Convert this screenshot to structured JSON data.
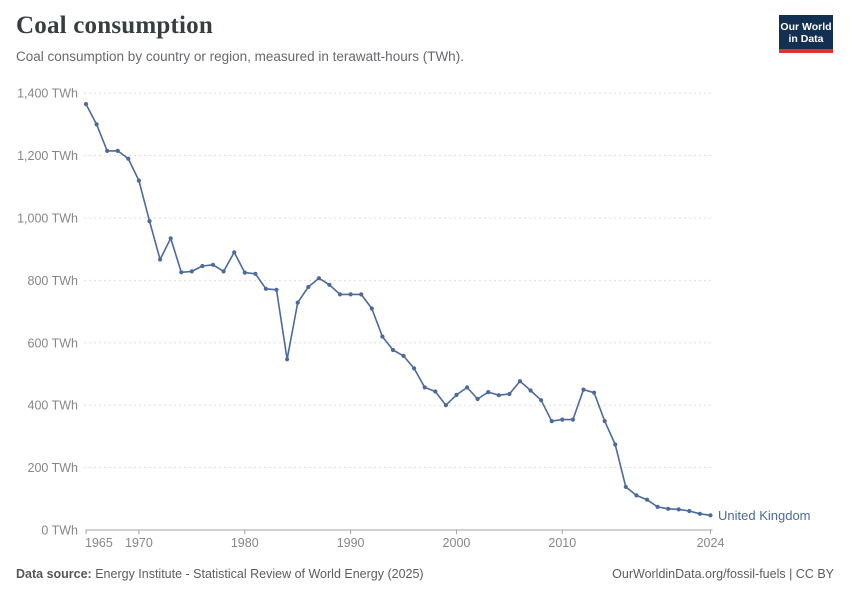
{
  "header": {
    "title": "Coal consumption",
    "subtitle": "Coal consumption by country or region, measured in terawatt-hours (TWh).",
    "logo": {
      "line1": "Our World",
      "line2": "in Data"
    }
  },
  "chart_data": {
    "type": "line",
    "title": "Coal consumption",
    "unit": "TWh",
    "grid": "horizontal-dashed",
    "legend": "end-of-line-label",
    "xlim": [
      1965,
      2024
    ],
    "ylim": [
      0,
      1400
    ],
    "x_ticks": [
      1965,
      1970,
      1980,
      1990,
      2000,
      2010,
      2024
    ],
    "y_ticks": [
      0,
      200,
      400,
      600,
      800,
      1000,
      1200,
      1400
    ],
    "x": [
      1965,
      1966,
      1967,
      1968,
      1969,
      1970,
      1971,
      1972,
      1973,
      1974,
      1975,
      1976,
      1977,
      1978,
      1979,
      1980,
      1981,
      1982,
      1983,
      1984,
      1985,
      1986,
      1987,
      1988,
      1989,
      1990,
      1991,
      1992,
      1993,
      1994,
      1995,
      1996,
      1997,
      1998,
      1999,
      2000,
      2001,
      2002,
      2003,
      2004,
      2005,
      2006,
      2007,
      2008,
      2009,
      2010,
      2011,
      2012,
      2013,
      2014,
      2015,
      2016,
      2017,
      2018,
      2019,
      2020,
      2021,
      2022,
      2023,
      2024
    ],
    "series": [
      {
        "name": "United Kingdom",
        "color": "#4C6A9C",
        "values": [
          1365,
          1300,
          1215,
          1215,
          1190,
          1120,
          990,
          867,
          935,
          826,
          829,
          846,
          850,
          829,
          890,
          825,
          821,
          773,
          770,
          547,
          729,
          779,
          807,
          786,
          755,
          755,
          755,
          710,
          620,
          577,
          558,
          518,
          457,
          444,
          400,
          433,
          457,
          420,
          442,
          432,
          436,
          477,
          447,
          416,
          349,
          354,
          354,
          450,
          440,
          349,
          274,
          138,
          111,
          97,
          74,
          68,
          66,
          61,
          52,
          47
        ]
      }
    ],
    "end_label": "United Kingdom"
  },
  "footer": {
    "source_label": "Data source:",
    "source_text": " Energy Institute - Statistical Review of World Energy (2025)",
    "credit": "OurWorldinData.org/fossil-fuels | CC BY"
  },
  "style": {
    "line_color": "#4C6A9C",
    "gridline_color": "#dddddd",
    "axis_color": "#a3a3a3",
    "tick_label_color": "#878787"
  }
}
